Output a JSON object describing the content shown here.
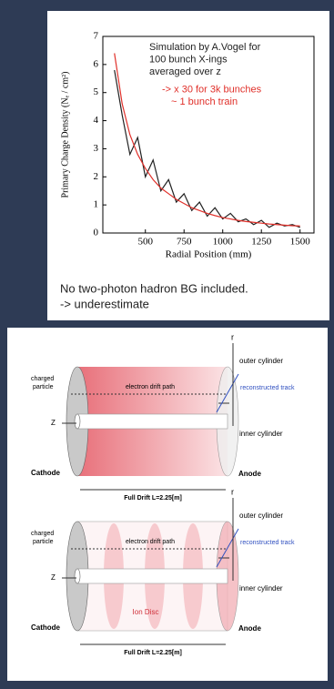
{
  "chart_data": {
    "type": "line",
    "annotations": [
      "Simulation by A.Vogel for",
      "100 bunch X-ings",
      "averaged over z",
      "-> x 30 for 3k bunches",
      "~ 1 bunch train"
    ],
    "x_label": "Radial Position (mm)",
    "y_label": "Primary Charge Density (Nₑ / cm²)",
    "x": [
      300,
      350,
      400,
      450,
      500,
      550,
      600,
      650,
      700,
      750,
      800,
      850,
      900,
      950,
      1000,
      1050,
      1100,
      1150,
      1200,
      1250,
      1300,
      1350,
      1400,
      1450,
      1500
    ],
    "series": [
      {
        "color": "#222222",
        "values": [
          5.8,
          4.2,
          2.8,
          3.4,
          2.0,
          2.6,
          1.5,
          1.9,
          1.1,
          1.4,
          0.8,
          1.1,
          0.6,
          0.9,
          0.5,
          0.7,
          0.4,
          0.5,
          0.3,
          0.45,
          0.2,
          0.35,
          0.25,
          0.3,
          0.2
        ]
      },
      {
        "color": "#e0302a",
        "values": [
          6.4,
          4.6,
          3.5,
          2.8,
          2.3,
          1.9,
          1.6,
          1.4,
          1.2,
          1.05,
          0.9,
          0.8,
          0.7,
          0.62,
          0.55,
          0.5,
          0.45,
          0.41,
          0.38,
          0.35,
          0.32,
          0.3,
          0.28,
          0.26,
          0.25
        ]
      }
    ],
    "xlim": [
      225,
      1590
    ],
    "xticks": [
      500,
      750,
      1000,
      1250,
      1500
    ],
    "ylim": [
      0,
      7
    ],
    "yticks": [
      0,
      1,
      2,
      3,
      4,
      5,
      6,
      7
    ]
  },
  "caption": [
    "No two-photon hadron BG included.",
    "-> underestimate"
  ],
  "diagrams": [
    {
      "charged_particle": [
        "charged",
        "particle"
      ],
      "drift_path": "electron drift path",
      "z": "Z",
      "cathode": "Cathode",
      "anode": "Anode",
      "full_drift": "Full Drift L=2.25[m]",
      "r": "r",
      "outer": "outer cylinder",
      "track": "reconstructed track",
      "inner": "inner cylinder"
    },
    {
      "charged_particle": [
        "charged",
        "particle"
      ],
      "drift_path": "electron drift path",
      "z": "Z",
      "cathode": "Cathode",
      "anode": "Anode",
      "full_drift": "Full Drift L=2.25[m]",
      "r": "r",
      "outer": "outer cylinder",
      "track": "reconstructed track",
      "inner": "inner cylinder",
      "ion_disc": "Ion Disc"
    }
  ]
}
